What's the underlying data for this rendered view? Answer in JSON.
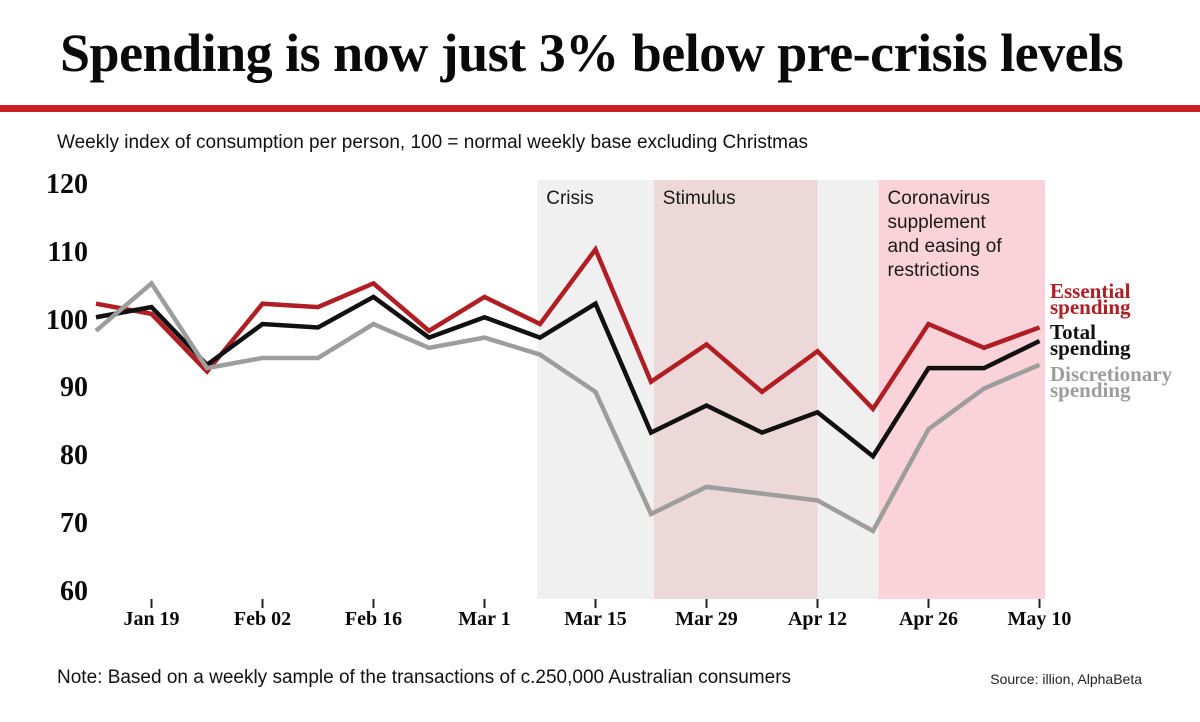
{
  "header": {
    "title": "Spending is now just 3% below pre-crisis levels"
  },
  "subtitle": "Weekly index of consumption per person, 100 = normal weekly base excluding Christmas",
  "footer": {
    "note": "Note: Based on a weekly sample of the transactions of c.250,000 Australian consumers",
    "source": "Source: illion, AlphaBeta"
  },
  "colors": {
    "accent_red": "#cc2127",
    "essential": "#b01d23",
    "total": "#111111",
    "discretionary": "#9d9d9d",
    "band_crisis": "#f0f0f0",
    "band_stimulus": "#ecd8d9",
    "band_gap": "#f1f0f1",
    "band_coronavirus": "#fad2da",
    "tick": "#222222"
  },
  "chart_data": {
    "type": "line",
    "title": "Spending is now just 3% below pre-crisis levels",
    "subtitle": "Weekly index of consumption per person, 100 = normal weekly base excluding Christmas",
    "x_unit": "week",
    "n_points": 18,
    "x_tick_labels": [
      "Jan 19",
      "Feb 02",
      "Feb 16",
      "Mar 1",
      "Mar 15",
      "Mar 29",
      "Apr 12",
      "Apr 26",
      "May 10"
    ],
    "x_tick_week_indices": [
      1,
      3,
      5,
      7,
      9,
      11,
      13,
      15,
      17
    ],
    "y_ticks": [
      120,
      110,
      100,
      90,
      80,
      70,
      60
    ],
    "ylim": [
      60,
      120
    ],
    "grid": false,
    "legend_position": "right",
    "series": [
      {
        "name": "Essential spending",
        "color_key": "essential",
        "values": [
          102.5,
          101,
          92.5,
          102.5,
          102,
          105.5,
          98.5,
          103.5,
          99.5,
          110.5,
          91,
          96.5,
          89.5,
          95.5,
          87,
          99.5,
          96,
          99
        ]
      },
      {
        "name": "Total spending",
        "color_key": "total",
        "values": [
          100.5,
          102,
          93.5,
          99.5,
          99,
          103.5,
          97.5,
          100.5,
          97.5,
          102.5,
          83.5,
          87.5,
          83.5,
          86.5,
          80,
          93,
          93,
          97
        ]
      },
      {
        "name": "Discretionary spending",
        "color_key": "discretionary",
        "values": [
          98.5,
          105.5,
          93,
          94.5,
          94.5,
          99.5,
          96,
          97.5,
          95,
          89.5,
          71.5,
          75.5,
          74.5,
          73.5,
          69,
          84,
          90,
          93.5
        ]
      }
    ],
    "bands": [
      {
        "label": "Crisis",
        "start_week": 7.95,
        "end_week": 10.05,
        "color_key": "band_crisis"
      },
      {
        "label": "Stimulus",
        "start_week": 10.05,
        "end_week": 13.0,
        "color_key": "band_stimulus"
      },
      {
        "label": "",
        "start_week": 13.0,
        "end_week": 14.1,
        "color_key": "band_gap"
      },
      {
        "label": "Coronavirus supplement and easing of restrictions",
        "start_week": 14.1,
        "end_week": 17.1,
        "color_key": "band_coronavirus"
      }
    ],
    "legend": [
      {
        "label": "Essential spending",
        "color_key": "essential"
      },
      {
        "label": "Total spending",
        "color_key": "total"
      },
      {
        "label": "Discretionary spending",
        "color_key": "discretionary"
      }
    ]
  }
}
